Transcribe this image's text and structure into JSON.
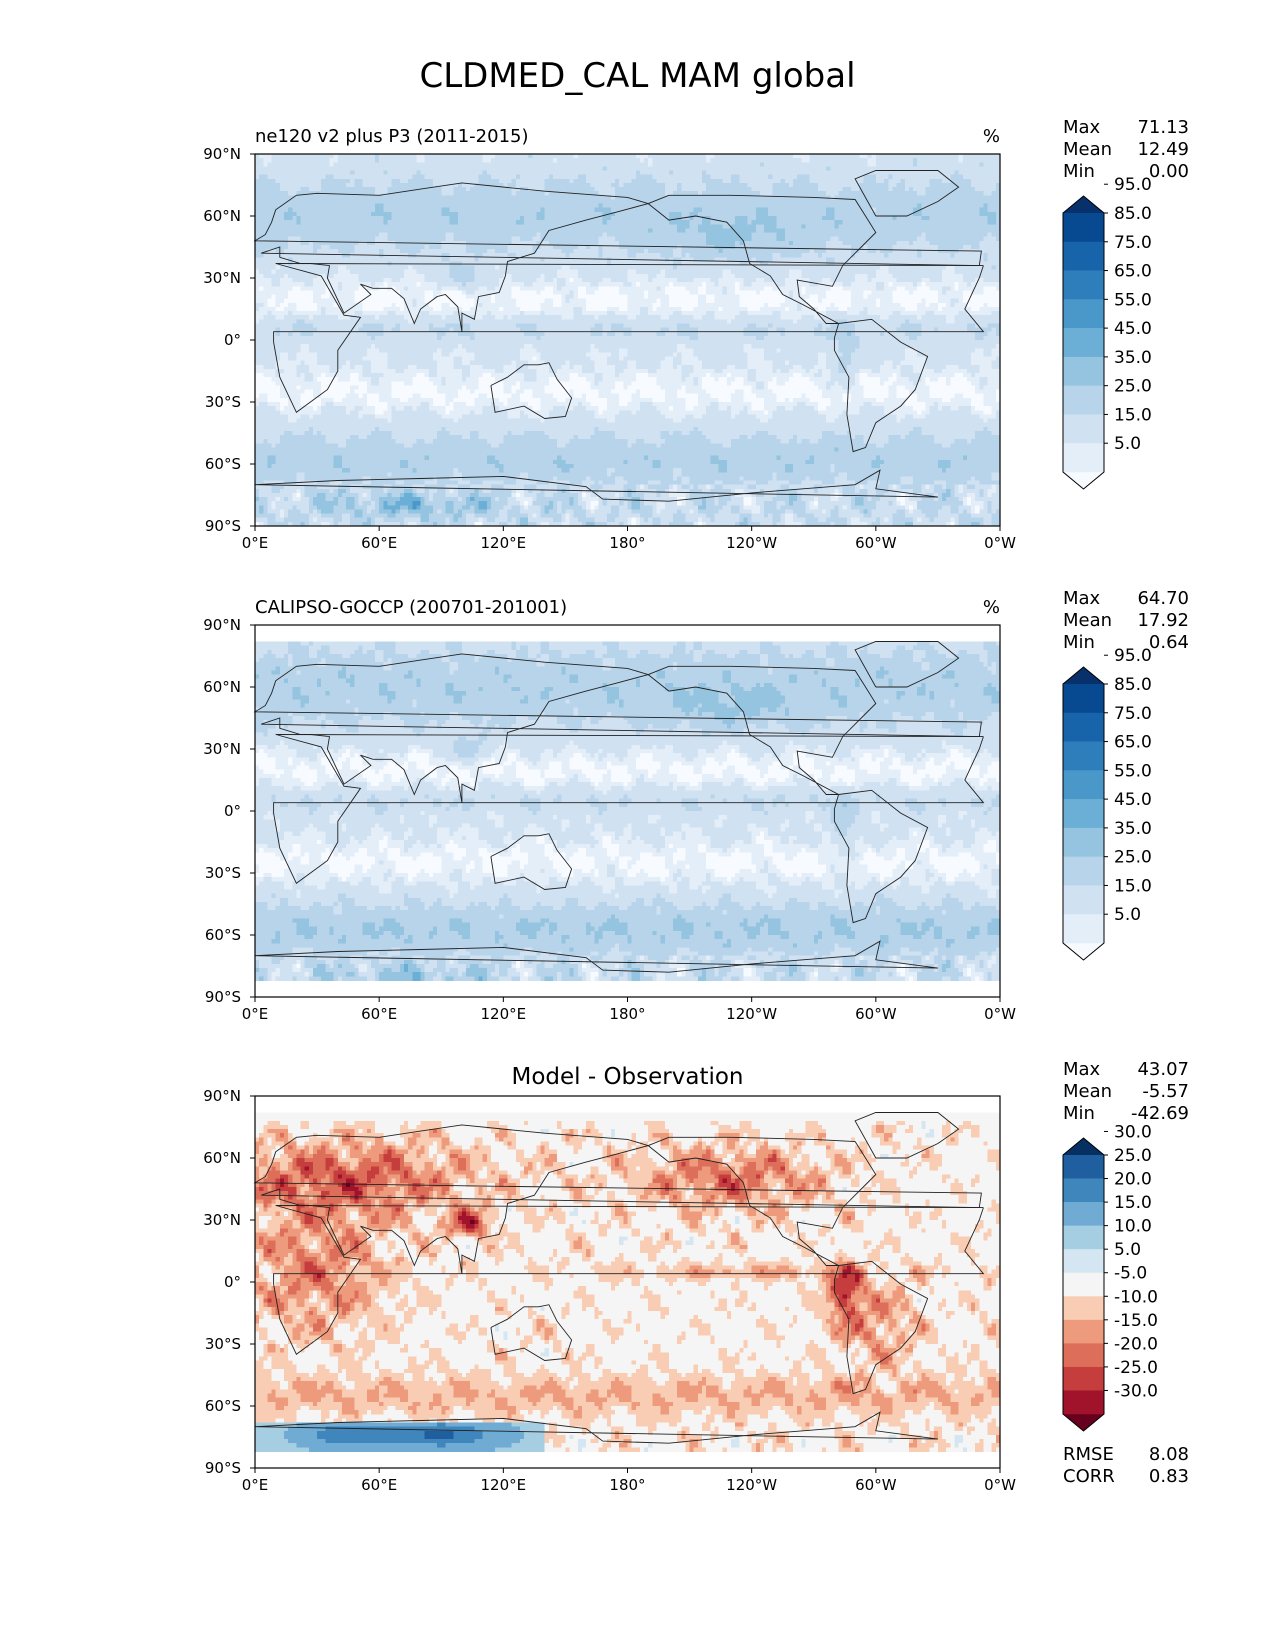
{
  "figure": {
    "title": "CLDMED_CAL MAM global"
  },
  "axes": {
    "x_ticks": [
      "0°E",
      "60°E",
      "120°E",
      "180°",
      "120°W",
      "60°W",
      "0°W"
    ],
    "y_ticks": [
      "90°N",
      "60°N",
      "30°N",
      "0°",
      "30°S",
      "60°S",
      "90°S"
    ]
  },
  "chart_data": [
    {
      "type": "heatmap",
      "title": "ne120 v2 plus P3 (2011-2015)",
      "units": "%",
      "x_range": [
        0,
        360
      ],
      "y_range": [
        -90,
        90
      ],
      "stats": [
        {
          "label": "Max",
          "value": "71.13"
        },
        {
          "label": "Mean",
          "value": "12.49"
        },
        {
          "label": "Min",
          "value": "0.00"
        }
      ],
      "colorbar": {
        "colormap": "Blues",
        "levels": [
          0,
          5,
          10,
          20,
          30,
          40,
          50,
          60,
          70,
          80,
          90,
          100
        ],
        "tick_labels": [
          "5.0",
          "15.0",
          "25.0",
          "35.0",
          "45.0",
          "55.0",
          "65.0",
          "75.0",
          "85.0",
          "95.0"
        ],
        "colors": [
          "#f7fbff",
          "#e3eef9",
          "#d0e1f2",
          "#b7d4ea",
          "#94c4df",
          "#6baed6",
          "#4a98c9",
          "#2e7ebc",
          "#1764ab",
          "#084a91",
          "#08306b"
        ]
      },
      "field": {
        "north_bias": 0.22,
        "south_ocean": 0.42,
        "antarctic": 0.5
      }
    },
    {
      "type": "heatmap",
      "title": "CALIPSO-GOCCP (200701-201001)",
      "units": "%",
      "x_range": [
        0,
        360
      ],
      "y_range": [
        -90,
        90
      ],
      "data_lat_range": [
        -82,
        82
      ],
      "stats": [
        {
          "label": "Max",
          "value": "64.70"
        },
        {
          "label": "Mean",
          "value": "17.92"
        },
        {
          "label": "Min",
          "value": "0.64"
        }
      ],
      "colorbar": {
        "colormap": "Blues",
        "levels": [
          0,
          5,
          10,
          20,
          30,
          40,
          50,
          60,
          70,
          80,
          90,
          100
        ],
        "tick_labels": [
          "5.0",
          "15.0",
          "25.0",
          "35.0",
          "45.0",
          "55.0",
          "65.0",
          "75.0",
          "85.0",
          "95.0"
        ],
        "colors": [
          "#f7fbff",
          "#e3eef9",
          "#d0e1f2",
          "#b7d4ea",
          "#94c4df",
          "#6baed6",
          "#4a98c9",
          "#2e7ebc",
          "#1764ab",
          "#084a91",
          "#08306b"
        ]
      },
      "field": {
        "north_bias": 0.3,
        "south_ocean": 0.48,
        "antarctic": 0.35
      }
    },
    {
      "type": "heatmap",
      "title": "Model - Observation",
      "units": "",
      "x_range": [
        0,
        360
      ],
      "y_range": [
        -90,
        90
      ],
      "data_lat_range": [
        -82,
        82
      ],
      "stats": [
        {
          "label": "Max",
          "value": "43.07"
        },
        {
          "label": "Mean",
          "value": "-5.57"
        },
        {
          "label": "Min",
          "value": "-42.69"
        }
      ],
      "extra_stats": [
        {
          "label": "RMSE",
          "value": "8.08"
        },
        {
          "label": "CORR",
          "value": "0.83"
        }
      ],
      "colorbar": {
        "colormap": "RdBu",
        "levels": [
          -35,
          -30,
          -25,
          -20,
          -15,
          -10,
          -5,
          5,
          10,
          15,
          20,
          25,
          30,
          35
        ],
        "tick_labels": [
          "-30.0",
          "-25.0",
          "-20.0",
          "-15.0",
          "-10.0",
          "-5.0",
          "5.0",
          "10.0",
          "15.0",
          "20.0",
          "25.0",
          "30.0"
        ],
        "colors": [
          "#67001f",
          "#a1132a",
          "#c53e3d",
          "#dd6e5a",
          "#ee9b7d",
          "#f9cdb4",
          "#f5f5f5",
          "#d4e6f1",
          "#a6cee3",
          "#6fabd2",
          "#3f86bd",
          "#1f5fa0",
          "#053061"
        ]
      },
      "field": {
        "anomaly": true
      }
    }
  ]
}
